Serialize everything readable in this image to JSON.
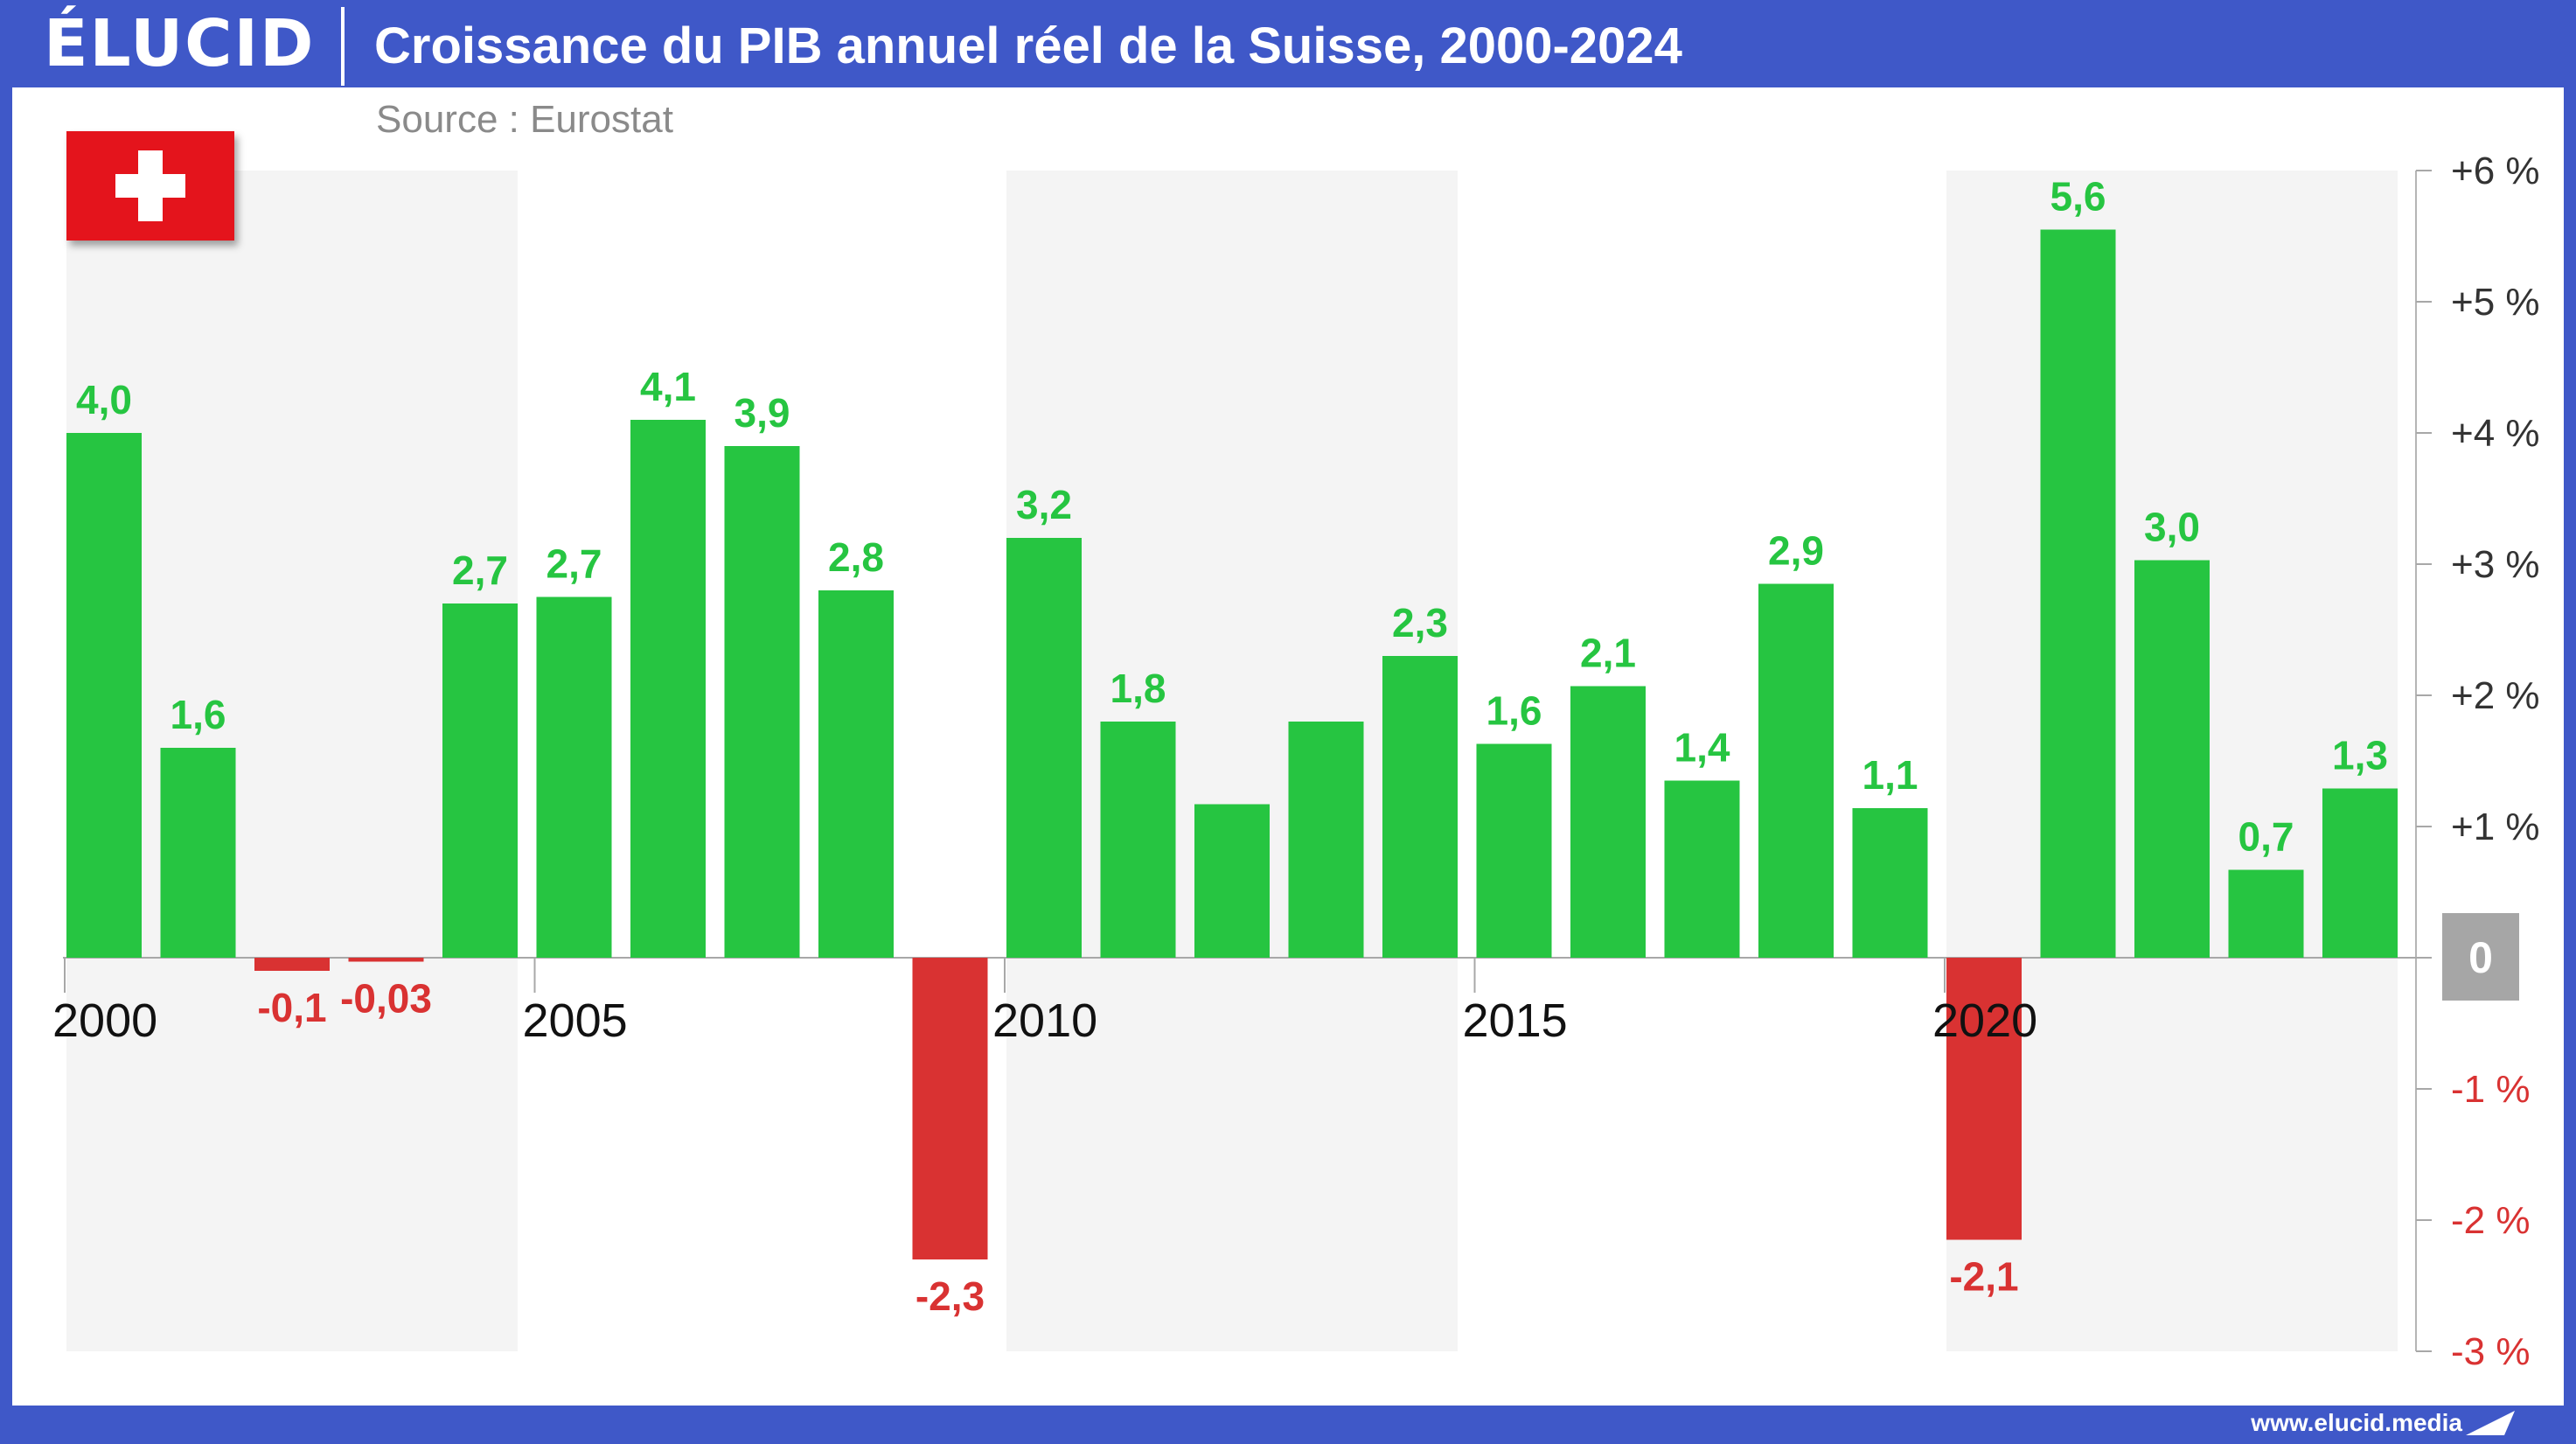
{
  "header": {
    "logo": "ÉLUCID",
    "title": "Croissance du PIB annuel réel de la Suisse, 2000-2024"
  },
  "subtitle": "Source : Eurostat",
  "flag_icon": "swiss-flag-icon",
  "footer": {
    "url": "www.elucid.media"
  },
  "colors": {
    "positive": "#26c541",
    "negative": "#d93232",
    "band": "#f4f4f4",
    "zero_badge": "#a6a6a6",
    "frame": "#3f58c8"
  },
  "chart_data": {
    "type": "bar",
    "categories": [
      "2000",
      "2001",
      "2002",
      "2003",
      "2004",
      "2005",
      "2006",
      "2007",
      "2008",
      "2009",
      "2010",
      "2011",
      "2012",
      "2013",
      "2014",
      "2015",
      "2016",
      "2017",
      "2018",
      "2019",
      "2020",
      "2021",
      "2022",
      "2023",
      "2024"
    ],
    "values": [
      4.0,
      1.6,
      -0.1,
      -0.03,
      2.7,
      2.75,
      4.1,
      3.9,
      2.8,
      -2.3,
      3.2,
      1.8,
      1.17,
      1.8,
      2.3,
      1.63,
      2.07,
      1.35,
      2.85,
      1.14,
      -2.15,
      5.55,
      3.03,
      0.67,
      1.29
    ],
    "data_labels": [
      "4,0",
      "1,6",
      "-0,1",
      "-0,03",
      "2,7",
      "2,7",
      "4,1",
      "3,9",
      "2,8",
      "-2,3",
      "3,2",
      "1,8",
      "",
      "",
      "2,3",
      "1,6",
      "2,1",
      "1,4",
      "2,9",
      "1,1",
      "-2,1",
      "5,6",
      "3,0",
      "0,7",
      "1,3"
    ],
    "x_tick_labels": [
      {
        "year": "2000",
        "label": "2000"
      },
      {
        "year": "2005",
        "label": "2005"
      },
      {
        "year": "2010",
        "label": "2010"
      },
      {
        "year": "2015",
        "label": "2015"
      },
      {
        "year": "2020",
        "label": "2020"
      }
    ],
    "y_ticks": [
      {
        "value": 6,
        "label": "+6 %"
      },
      {
        "value": 5,
        "label": "+5 %"
      },
      {
        "value": 4,
        "label": "+4 %"
      },
      {
        "value": 3,
        "label": "+3 %"
      },
      {
        "value": 2,
        "label": "+2 %"
      },
      {
        "value": 1,
        "label": "+1 %"
      },
      {
        "value": 0,
        "label": "0"
      },
      {
        "value": -1,
        "label": "-1 %"
      },
      {
        "value": -2,
        "label": "-2 %"
      },
      {
        "value": -3,
        "label": "-3 %"
      }
    ],
    "ylim": [
      -3,
      6
    ],
    "shaded_bands": [
      {
        "from": "2000",
        "to": "2004"
      },
      {
        "from": "2010",
        "to": "2014"
      },
      {
        "from": "2020",
        "to": "2024"
      }
    ],
    "grid": false,
    "y_axis_position": "right"
  }
}
